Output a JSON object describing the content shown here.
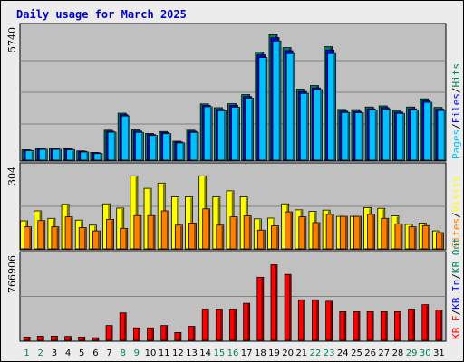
{
  "chart_data": {
    "title": "Daily usage for March 2025",
    "type": "bar",
    "categories": [
      "1",
      "2",
      "3",
      "4",
      "5",
      "6",
      "7",
      "8",
      "9",
      "10",
      "11",
      "12",
      "13",
      "14",
      "15",
      "16",
      "17",
      "18",
      "19",
      "20",
      "21",
      "22",
      "23",
      "24",
      "25",
      "26",
      "27",
      "28",
      "29",
      "30",
      "31"
    ],
    "weekend_days": [
      "1",
      "2",
      "8",
      "9",
      "15",
      "16",
      "22",
      "23",
      "29",
      "30"
    ],
    "colors": {
      "hits": "#00805c",
      "files": "#0000ff",
      "pages": "#00c0ff",
      "visits": "#ffff00",
      "sites": "#ff8000",
      "kb_in": "#0000ff",
      "kb_out": "#00805c",
      "kb_f": "#ff0000",
      "weekday_label": "#000000",
      "weekend_label": "#00805c",
      "title": "#0000cc",
      "panel_bg": "#c0c0c0"
    },
    "panels": [
      {
        "name": "hits-files-pages",
        "max_label": "5740",
        "ymax": 5740,
        "legend": [
          {
            "key": "pages",
            "text": "Pages",
            "color": "#00c0ff"
          },
          {
            "key": "sep",
            "text": "/",
            "color": "#000000"
          },
          {
            "key": "files",
            "text": "Files",
            "color": "#0000ff"
          },
          {
            "key": "sep",
            "text": "/",
            "color": "#000000"
          },
          {
            "key": "hits",
            "text": "Hits",
            "color": "#00805c"
          }
        ],
        "series": [
          {
            "key": "hits",
            "values": [
              470,
              540,
              540,
              520,
              420,
              350,
              1360,
              2130,
              1370,
              1210,
              1300,
              860,
              1360,
              2550,
              2380,
              2560,
              2970,
              4900,
              5680,
              5100,
              3220,
              3380,
              5140,
              2300,
              2290,
              2410,
              2460,
              2260,
              2410,
              2780,
              2390
            ]
          },
          {
            "key": "files",
            "values": [
              450,
              520,
              520,
              500,
              400,
              330,
              1310,
              2060,
              1320,
              1160,
              1250,
              820,
              1310,
              2480,
              2300,
              2480,
              2880,
              4770,
              5550,
              4960,
              3110,
              3270,
              4990,
              2220,
              2210,
              2330,
              2380,
              2180,
              2330,
              2690,
              2310
            ]
          },
          {
            "key": "pages",
            "values": [
              430,
              490,
              490,
              470,
              370,
              300,
              1270,
              2000,
              1260,
              1120,
              1200,
              780,
              1260,
              2420,
              2240,
              2400,
              2810,
              4650,
              5400,
              4830,
              3020,
              3200,
              4830,
              2160,
              2150,
              2270,
              2310,
              2120,
              2270,
              2620,
              2250
            ]
          }
        ]
      },
      {
        "name": "visits-sites",
        "max_label": "304",
        "ymax": 304,
        "legend": [
          {
            "key": "sites",
            "text": "Sites",
            "color": "#ff8000"
          },
          {
            "key": "sep",
            "text": "/",
            "color": "#000000"
          },
          {
            "key": "visits",
            "text": "Visits",
            "color": "#ffff00"
          }
        ],
        "series": [
          {
            "key": "visits",
            "values": [
              112,
              152,
              122,
              178,
              115,
              95,
              180,
              163,
              292,
              242,
              263,
              208,
              208,
              292,
              208,
              232,
              208,
              120,
              123,
              180,
              156,
              150,
              155,
              130,
              130,
              165,
              162,
              132,
              98,
              103,
              72
            ]
          },
          {
            "key": "sites",
            "values": [
              88,
              113,
              88,
              128,
              85,
              72,
              118,
              82,
              133,
              133,
              152,
              95,
              103,
              160,
              95,
              128,
              132,
              75,
              92,
              148,
              128,
              105,
              138,
              130,
              130,
              138,
              122,
              100,
              88,
              93,
              65
            ]
          }
        ]
      },
      {
        "name": "kbytes",
        "max_label": "766906",
        "ymax": 766906,
        "legend": [
          {
            "key": "kb_f",
            "text": "KB F",
            "color": "#ff0000"
          },
          {
            "key": "sep",
            "text": "/",
            "color": "#000000"
          },
          {
            "key": "kb_in",
            "text": "KB In",
            "color": "#0000ff"
          },
          {
            "key": "sep",
            "text": "/",
            "color": "#000000"
          },
          {
            "key": "kb_out",
            "text": "KB Out",
            "color": "#00805c"
          }
        ],
        "series": [
          {
            "key": "kb_f",
            "values": [
              32000,
              40000,
              40000,
              38000,
              32000,
              25000,
              144000,
              267000,
              121000,
              121000,
              144000,
              76000,
              136000,
              304000,
              304000,
              304000,
              360000,
              614000,
              736000,
              642000,
              394000,
              394000,
              380000,
              278000,
              278000,
              278000,
              278000,
              278000,
              304000,
              347000,
              296000
            ]
          }
        ]
      }
    ]
  }
}
